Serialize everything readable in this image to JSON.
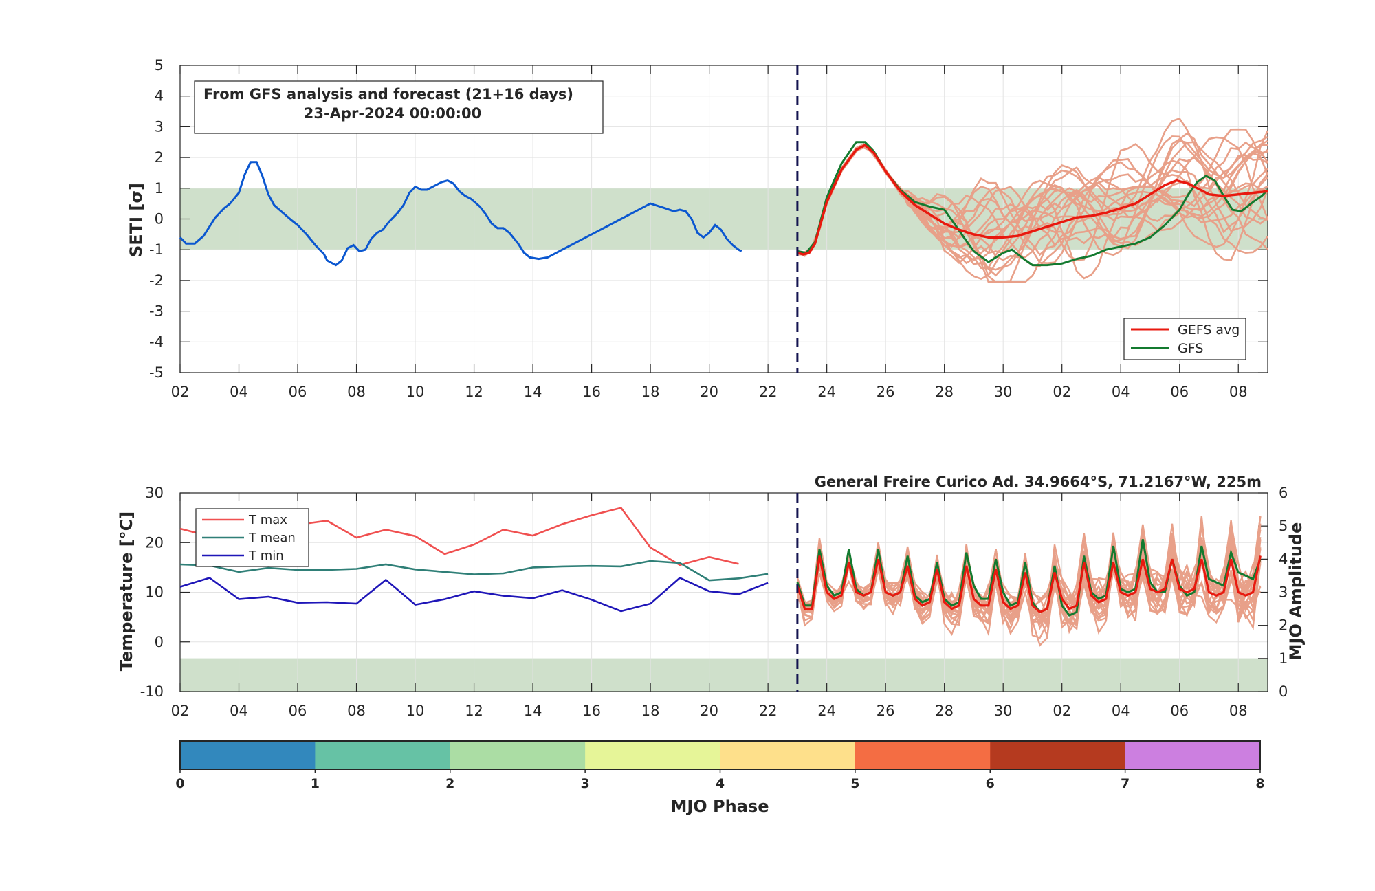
{
  "colors": {
    "band": "#cfe0cb",
    "analysis": "#0b57d0",
    "gefs_avg": "#e8190f",
    "gfs": "#137a2f",
    "member": "#e8a089",
    "tmax": "#f05050",
    "tmean": "#2f7f77",
    "tmin": "#1f16b8",
    "divider": "#141450",
    "phase_colors": [
      "#3288bd",
      "#66c2a5",
      "#abdda4",
      "#e6f598",
      "#fee08b",
      "#f46d43",
      "#b53a1f",
      "#cc7fe0"
    ]
  },
  "top": {
    "ylabel": "SETI [σ]",
    "box_line1": "From GFS analysis and forecast (21+16 days)",
    "box_line2": "23-Apr-2024 00:00:00",
    "legend": [
      "GEFS avg",
      "GFS"
    ],
    "yticks": [
      "5",
      "4",
      "3",
      "2",
      "1",
      "0",
      "-1",
      "-2",
      "-3",
      "-4",
      "-5"
    ]
  },
  "xticks": [
    "02",
    "04",
    "06",
    "08",
    "10",
    "12",
    "14",
    "16",
    "18",
    "20",
    "22",
    "24",
    "26",
    "28",
    "30",
    "02",
    "04",
    "06",
    "08"
  ],
  "bottom": {
    "title": "General Freire Curico Ad. 34.9664°S, 71.2167°W, 225m",
    "ylabel_left": "Temperature [°C]",
    "ylabel_right": "MJO Amplitude",
    "legend": [
      "T max",
      "T mean",
      "T min"
    ],
    "yticks_left": [
      "30",
      "20",
      "10",
      "0",
      "-10"
    ],
    "yticks_right": [
      "6",
      "5",
      "4",
      "3",
      "2",
      "1",
      "0"
    ]
  },
  "colorbar": {
    "label": "MJO Phase",
    "ticks": [
      "0",
      "1",
      "2",
      "3",
      "4",
      "5",
      "6",
      "7",
      "8"
    ]
  },
  "chart_data": [
    {
      "type": "line",
      "xlabel": "",
      "ylabel": "SETI [σ]",
      "x_unit": "days from 2 Apr 2024 (x=21 is 23 Apr 2024)",
      "xlim": [
        0,
        37
      ],
      "ylim": [
        -5,
        5
      ],
      "band": [
        -1,
        1
      ],
      "forecast_start_x": 21,
      "series": [
        {
          "name": "",
          "role": "analysis",
          "points": [
            [
              0,
              -0.6
            ],
            [
              0.2,
              -0.8
            ],
            [
              0.5,
              -0.8
            ],
            [
              0.8,
              -0.55
            ],
            [
              1.2,
              0.05
            ],
            [
              1.5,
              0.35
            ],
            [
              1.7,
              0.5
            ],
            [
              2.0,
              0.85
            ],
            [
              2.2,
              1.45
            ],
            [
              2.4,
              1.85
            ],
            [
              2.6,
              1.85
            ],
            [
              2.8,
              1.4
            ],
            [
              3.0,
              0.8
            ],
            [
              3.2,
              0.45
            ],
            [
              3.5,
              0.2
            ],
            [
              3.8,
              -0.05
            ],
            [
              4.0,
              -0.2
            ],
            [
              4.3,
              -0.5
            ],
            [
              4.6,
              -0.85
            ],
            [
              4.9,
              -1.15
            ],
            [
              5.0,
              -1.35
            ],
            [
              5.3,
              -1.5
            ],
            [
              5.5,
              -1.35
            ],
            [
              5.7,
              -0.95
            ],
            [
              5.9,
              -0.85
            ],
            [
              6.1,
              -1.05
            ],
            [
              6.3,
              -1.0
            ],
            [
              6.5,
              -0.65
            ],
            [
              6.7,
              -0.45
            ],
            [
              6.9,
              -0.35
            ],
            [
              7.1,
              -0.1
            ],
            [
              7.4,
              0.2
            ],
            [
              7.6,
              0.45
            ],
            [
              7.8,
              0.85
            ],
            [
              8.0,
              1.05
            ],
            [
              8.2,
              0.95
            ],
            [
              8.4,
              0.95
            ],
            [
              8.7,
              1.1
            ],
            [
              8.9,
              1.2
            ],
            [
              9.1,
              1.25
            ],
            [
              9.3,
              1.15
            ],
            [
              9.5,
              0.9
            ],
            [
              9.7,
              0.75
            ],
            [
              9.9,
              0.65
            ],
            [
              10.2,
              0.4
            ],
            [
              10.4,
              0.15
            ],
            [
              10.6,
              -0.15
            ],
            [
              10.8,
              -0.3
            ],
            [
              11.0,
              -0.3
            ],
            [
              11.2,
              -0.45
            ],
            [
              11.5,
              -0.8
            ],
            [
              11.7,
              -1.1
            ],
            [
              11.9,
              -1.25
            ],
            [
              12.2,
              -1.3
            ],
            [
              12.5,
              -1.25
            ],
            [
              13.0,
              -1.0
            ],
            [
              14.0,
              -0.5
            ],
            [
              15.0,
              0.0
            ],
            [
              16.0,
              0.5
            ],
            [
              16.5,
              0.35
            ],
            [
              16.8,
              0.25
            ],
            [
              17.0,
              0.3
            ],
            [
              17.2,
              0.25
            ],
            [
              17.4,
              0.0
            ],
            [
              17.6,
              -0.45
            ],
            [
              17.8,
              -0.6
            ],
            [
              18.0,
              -0.45
            ],
            [
              18.2,
              -0.2
            ],
            [
              18.4,
              -0.35
            ],
            [
              18.6,
              -0.65
            ],
            [
              18.8,
              -0.85
            ],
            [
              19.0,
              -1.0
            ],
            [
              19.1,
              -1.05
            ]
          ]
        },
        {
          "name": "GEFS avg",
          "role": "ensemble_mean",
          "points": [
            [
              21,
              -1.1
            ],
            [
              21.2,
              -1.15
            ],
            [
              21.4,
              -1.1
            ],
            [
              21.6,
              -0.8
            ],
            [
              22.0,
              0.55
            ],
            [
              22.5,
              1.6
            ],
            [
              23.0,
              2.25
            ],
            [
              23.3,
              2.4
            ],
            [
              23.6,
              2.15
            ],
            [
              24.0,
              1.55
            ],
            [
              24.5,
              0.9
            ],
            [
              25.0,
              0.45
            ],
            [
              25.5,
              0.15
            ],
            [
              26.0,
              -0.15
            ],
            [
              26.5,
              -0.35
            ],
            [
              27.0,
              -0.5
            ],
            [
              27.5,
              -0.6
            ],
            [
              28.0,
              -0.6
            ],
            [
              28.5,
              -0.55
            ],
            [
              29.0,
              -0.4
            ],
            [
              29.5,
              -0.25
            ],
            [
              30.0,
              -0.1
            ],
            [
              30.5,
              0.05
            ],
            [
              31.0,
              0.1
            ],
            [
              31.5,
              0.2
            ],
            [
              32.0,
              0.35
            ],
            [
              32.5,
              0.5
            ],
            [
              33.0,
              0.8
            ],
            [
              33.5,
              1.1
            ],
            [
              33.9,
              1.25
            ],
            [
              34.3,
              1.15
            ],
            [
              34.7,
              0.95
            ],
            [
              35.0,
              0.8
            ],
            [
              35.5,
              0.75
            ],
            [
              36.0,
              0.8
            ],
            [
              36.5,
              0.85
            ],
            [
              37.0,
              0.9
            ]
          ]
        },
        {
          "name": "GFS",
          "role": "deterministic",
          "points": [
            [
              21,
              -1.05
            ],
            [
              21.3,
              -1.1
            ],
            [
              21.6,
              -0.75
            ],
            [
              22.0,
              0.7
            ],
            [
              22.5,
              1.8
            ],
            [
              23.0,
              2.5
            ],
            [
              23.3,
              2.5
            ],
            [
              23.6,
              2.2
            ],
            [
              24.0,
              1.55
            ],
            [
              24.5,
              0.95
            ],
            [
              25.0,
              0.55
            ],
            [
              25.5,
              0.4
            ],
            [
              26.0,
              0.3
            ],
            [
              26.3,
              -0.1
            ],
            [
              26.7,
              -0.65
            ],
            [
              27.0,
              -1.05
            ],
            [
              27.5,
              -1.4
            ],
            [
              28.0,
              -1.1
            ],
            [
              28.3,
              -1.0
            ],
            [
              28.7,
              -1.3
            ],
            [
              29.0,
              -1.5
            ],
            [
              29.5,
              -1.5
            ],
            [
              30.0,
              -1.45
            ],
            [
              30.5,
              -1.3
            ],
            [
              31.0,
              -1.2
            ],
            [
              31.5,
              -1.0
            ],
            [
              32.0,
              -0.9
            ],
            [
              32.5,
              -0.8
            ],
            [
              33.0,
              -0.6
            ],
            [
              33.5,
              -0.2
            ],
            [
              34.0,
              0.3
            ],
            [
              34.3,
              0.8
            ],
            [
              34.6,
              1.2
            ],
            [
              34.9,
              1.4
            ],
            [
              35.2,
              1.25
            ],
            [
              35.5,
              0.75
            ],
            [
              35.8,
              0.3
            ],
            [
              36.1,
              0.25
            ],
            [
              36.5,
              0.55
            ],
            [
              36.8,
              0.75
            ],
            [
              37.0,
              0.95
            ]
          ]
        }
      ],
      "ensemble_members": {
        "count": 20,
        "x_start": 21,
        "x_end": 37,
        "note": "individual GEFS members, spread roughly -2 to 3.3 by day 37"
      }
    },
    {
      "type": "line",
      "ylabel": "Temperature [°C]",
      "ylabel_right": "MJO Amplitude",
      "xlim": [
        0,
        37
      ],
      "ylim": [
        -10,
        30
      ],
      "ylim_right": [
        0,
        6
      ],
      "band": [
        -10,
        -3.3
      ],
      "forecast_start_x": 21,
      "series": [
        {
          "name": "T max",
          "x": [
            0,
            1,
            2,
            3,
            4,
            5,
            6,
            7,
            8,
            9,
            10,
            11,
            12,
            13,
            14,
            15,
            16,
            17,
            18,
            19,
            20
          ],
          "values": [
            22.8,
            21.3,
            21.7,
            22.3,
            23.6,
            24.4,
            21.0,
            22.6,
            21.3,
            17.7,
            19.6,
            22.6,
            21.4,
            23.7,
            25.5,
            27.0,
            19.0,
            15.5,
            17.1,
            15.7,
            null
          ]
        },
        {
          "name": "T mean",
          "x": [
            0,
            1,
            2,
            3,
            4,
            5,
            6,
            7,
            8,
            9,
            10,
            11,
            12,
            13,
            14,
            15,
            16,
            17,
            18,
            19,
            20
          ],
          "values": [
            15.6,
            15.4,
            14.1,
            14.9,
            14.5,
            14.5,
            14.7,
            15.6,
            14.6,
            14.1,
            13.6,
            13.8,
            15.0,
            15.2,
            15.3,
            15.2,
            16.3,
            15.9,
            12.4,
            12.8,
            13.7
          ]
        },
        {
          "name": "T min",
          "x": [
            0,
            1,
            2,
            3,
            4,
            5,
            6,
            7,
            8,
            9,
            10,
            11,
            12,
            13,
            14,
            15,
            16,
            17,
            18,
            19,
            20
          ],
          "values": [
            11.1,
            12.9,
            8.6,
            9.1,
            7.9,
            8.0,
            7.7,
            12.5,
            7.5,
            8.6,
            10.2,
            9.3,
            8.8,
            10.4,
            8.5,
            6.2,
            7.7,
            12.9,
            10.2,
            9.6,
            11.9
          ]
        },
        {
          "name": "GEFS avg",
          "x_start": 21,
          "x_step": 0.25,
          "note": "diurnal cycle in MJO amplitude units",
          "values": [
            3.2,
            2.5,
            2.5,
            4.1,
            3.0,
            2.8,
            2.9,
            3.9,
            3.0,
            2.9,
            3.0,
            4.0,
            3.0,
            2.9,
            3.0,
            3.8,
            2.8,
            2.6,
            2.7,
            3.7,
            2.7,
            2.5,
            2.6,
            3.8,
            2.8,
            2.6,
            2.6,
            3.7,
            2.7,
            2.5,
            2.6,
            3.6,
            2.6,
            2.4,
            2.5,
            3.6,
            2.8,
            2.5,
            2.6,
            3.9,
            2.9,
            2.7,
            2.8,
            3.9,
            3.0,
            2.9,
            3.0,
            4.0,
            3.1,
            3.0,
            3.1,
            4.0,
            3.1,
            3.0,
            3.1,
            4.0,
            3.0,
            2.9,
            3.0,
            4.0,
            3.0,
            2.9,
            3.0,
            4.1
          ]
        },
        {
          "name": "GFS",
          "x_start": 21,
          "x_step": 0.25,
          "values": [
            3.3,
            2.6,
            2.6,
            4.3,
            3.2,
            2.9,
            3.0,
            4.3,
            3.1,
            2.9,
            3.0,
            4.3,
            3.0,
            2.9,
            3.0,
            4.1,
            2.9,
            2.7,
            2.8,
            3.9,
            2.8,
            2.6,
            2.7,
            4.2,
            3.2,
            2.8,
            2.8,
            4.0,
            3.0,
            2.6,
            2.7,
            3.9,
            2.7,
            2.4,
            2.5,
            3.8,
            2.6,
            2.3,
            2.4,
            4.1,
            3.0,
            2.8,
            2.9,
            4.4,
            3.1,
            3.0,
            3.1,
            4.6,
            3.3,
            3.0,
            3.0,
            4.0,
            3.2,
            2.9,
            3.0,
            4.4,
            3.4,
            3.3,
            3.2,
            4.2,
            3.6,
            3.5,
            3.4,
            4.0
          ]
        }
      ]
    },
    {
      "type": "heatmap",
      "label": "MJO Phase",
      "ticks": [
        0,
        1,
        2,
        3,
        4,
        5,
        6,
        7,
        8
      ],
      "colors": [
        "#3288bd",
        "#66c2a5",
        "#abdda4",
        "#e6f598",
        "#fee08b",
        "#f46d43",
        "#b53a1f",
        "#cc7fe0"
      ]
    }
  ]
}
